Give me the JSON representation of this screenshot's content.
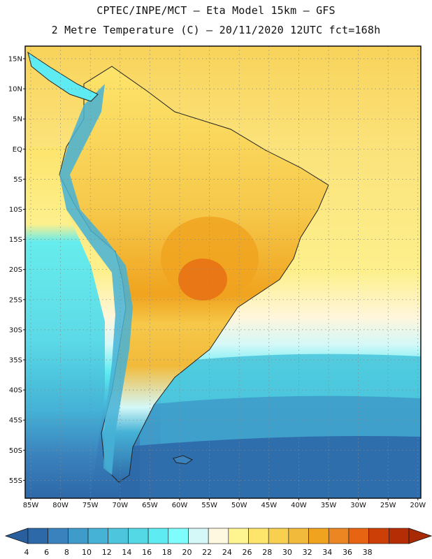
{
  "header": {
    "line1": "CPTEC/INPE/MCT –  Eta Model 15km – GFS",
    "line2": "2 Metre Temperature (C) – 20/11/2020 12UTC fct=168h"
  },
  "map": {
    "lat_labels": [
      "15N",
      "10N",
      "5N",
      "EQ",
      "5S",
      "10S",
      "15S",
      "20S",
      "25S",
      "30S",
      "35S",
      "40S",
      "45S",
      "50S",
      "55S"
    ],
    "lon_labels": [
      "85W",
      "80W",
      "75W",
      "70W",
      "65W",
      "60W",
      "55W",
      "50W",
      "45W",
      "40W",
      "35W",
      "30W",
      "25W",
      "20W"
    ]
  },
  "colorbar": {
    "labels": [
      "4",
      "6",
      "8",
      "10",
      "12",
      "14",
      "16",
      "18",
      "20",
      "22",
      "24",
      "26",
      "28",
      "30",
      "32",
      "34",
      "36",
      "38"
    ],
    "colors": [
      "#2d68a8",
      "#3a82bd",
      "#3f9cca",
      "#45b2d6",
      "#4dc6dd",
      "#55d8e6",
      "#5eecf2",
      "#7ffdfd",
      "#d4f8f8",
      "#fff8e0",
      "#fef590",
      "#fde46b",
      "#f8cf4f",
      "#f2ba3a",
      "#f0a31e",
      "#ec8622",
      "#e66412",
      "#cc4008",
      "#b52d05"
    ],
    "low_color": "#2a5f9e",
    "high_color": "#a82a04"
  }
}
